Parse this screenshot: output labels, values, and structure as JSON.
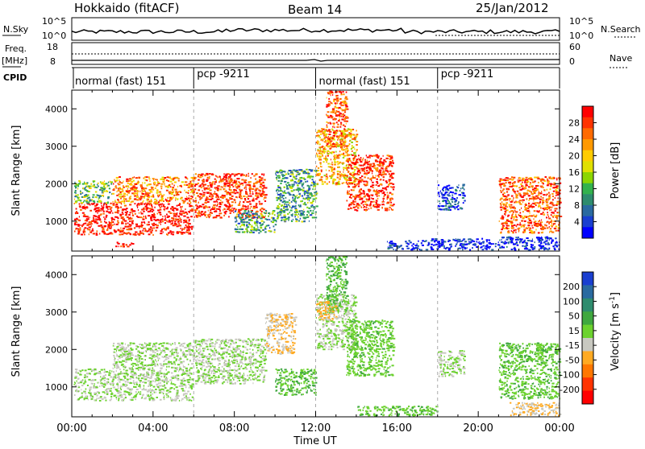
{
  "header": {
    "title": "Hokkaido (fitACF)",
    "beam": "Beam 14",
    "date": "25/Jan/2012"
  },
  "top_panels": {
    "nsky_label": "N.Sky",
    "nsky_ticks": [
      "10^5",
      "10^0"
    ],
    "nsky_right_ticks": [
      "10^5",
      "10^0"
    ],
    "nsearch_label": "N.Search",
    "freq_label": "Freq.",
    "freq_unit": "[MHz]",
    "freq_ticks": [
      "18",
      "8"
    ],
    "nave_ticks": [
      "60",
      "0"
    ],
    "nave_label": "Nave",
    "cpid_label": "CPID",
    "cpid_segments": [
      {
        "label": "normal (fast) 151",
        "start": 0,
        "end": 6
      },
      {
        "label": "pcp -9211",
        "start": 6,
        "end": 12
      },
      {
        "label": "normal (fast) 151",
        "start": 12,
        "end": 18
      },
      {
        "label": "pcp -9211",
        "start": 18,
        "end": 24
      }
    ]
  },
  "chart_data": [
    {
      "type": "heatmap",
      "name": "power-panel",
      "xlabel": "",
      "ylabel": "Slant Range [km]",
      "xlim": [
        0,
        24
      ],
      "ylim": [
        200,
        4500
      ],
      "yticks": [
        "1000",
        "2000",
        "3000",
        "4000"
      ],
      "colorbar": {
        "label": "Power [dB]",
        "ticks": [
          "28",
          "24",
          "20",
          "16",
          "12",
          "8",
          "4"
        ],
        "colors": [
          "#ff0000",
          "#ff3300",
          "#ff6a00",
          "#ff9900",
          "#ffcc00",
          "#e0e000",
          "#8cd600",
          "#33b24d",
          "#2e8c6e",
          "#2a6aa0",
          "#1a3fd0",
          "#0000ff"
        ]
      },
      "regions": [
        {
          "t0": 0.1,
          "t1": 5.9,
          "r0": 650,
          "r1": 1500,
          "value": 27
        },
        {
          "t0": 2.0,
          "t1": 6.0,
          "r0": 1500,
          "r1": 2200,
          "value": 22
        },
        {
          "t0": 0.1,
          "t1": 2.0,
          "r0": 1500,
          "r1": 2100,
          "value": 14
        },
        {
          "t0": 6.0,
          "t1": 9.5,
          "r0": 1100,
          "r1": 2300,
          "value": 25
        },
        {
          "t0": 8.0,
          "t1": 10.0,
          "r0": 700,
          "r1": 1300,
          "value": 12
        },
        {
          "t0": 2.0,
          "t1": 3.0,
          "r0": 330,
          "r1": 450,
          "value": 28
        },
        {
          "t0": 10.0,
          "t1": 12.0,
          "r0": 1000,
          "r1": 2400,
          "value": 12
        },
        {
          "t0": 12.0,
          "t1": 14.0,
          "r0": 2000,
          "r1": 3500,
          "value": 20
        },
        {
          "t0": 13.5,
          "t1": 15.8,
          "r0": 1300,
          "r1": 2800,
          "value": 26
        },
        {
          "t0": 12.5,
          "t1": 13.5,
          "r0": 3000,
          "r1": 4500,
          "value": 24
        },
        {
          "t0": 15.5,
          "t1": 17.5,
          "r0": 250,
          "r1": 500,
          "value": 6
        },
        {
          "t0": 17.5,
          "t1": 21.0,
          "r0": 250,
          "r1": 550,
          "value": 5
        },
        {
          "t0": 18.0,
          "t1": 19.3,
          "r0": 1300,
          "r1": 2000,
          "value": 7
        },
        {
          "t0": 21.0,
          "t1": 24.0,
          "r0": 700,
          "r1": 2200,
          "value": 24
        },
        {
          "t0": 21.0,
          "t1": 24.0,
          "r0": 250,
          "r1": 600,
          "value": 6
        }
      ]
    },
    {
      "type": "heatmap",
      "name": "velocity-panel",
      "xlabel": "Time UT",
      "ylabel": "Slant Range [km]",
      "xlim": [
        0,
        24
      ],
      "ylim": [
        200,
        4500
      ],
      "xticks": [
        "00:00",
        "04:00",
        "08:00",
        "12:00",
        "16:00",
        "20:00",
        "00:00"
      ],
      "yticks": [
        "1000",
        "2000",
        "3000",
        "4000"
      ],
      "colorbar": {
        "label": "Velocity [m s^-1]",
        "ticks": [
          "200",
          "100",
          "50",
          "15",
          "-15",
          "-50",
          "-100",
          "-200"
        ],
        "colors": [
          "#1a3fd0",
          "#2a6aa0",
          "#2e8c6e",
          "#3fa83f",
          "#6cd22e",
          "#c8c8c0",
          "#ffaa22",
          "#ff7700",
          "#ff3300",
          "#ff0000"
        ]
      },
      "regions": [
        {
          "t0": 0.1,
          "t1": 5.9,
          "r0": 650,
          "r1": 1500,
          "value": 0
        },
        {
          "t0": 2.0,
          "t1": 6.0,
          "r0": 1500,
          "r1": 2200,
          "value": 0
        },
        {
          "t0": 6.0,
          "t1": 9.5,
          "r0": 1100,
          "r1": 2300,
          "value": 0
        },
        {
          "t0": 9.5,
          "t1": 11.0,
          "r0": 1900,
          "r1": 3000,
          "value": -40
        },
        {
          "t0": 10.0,
          "t1": 12.0,
          "r0": 800,
          "r1": 1500,
          "value": 40
        },
        {
          "t0": 12.0,
          "t1": 14.0,
          "r0": 2000,
          "r1": 3500,
          "value": 0
        },
        {
          "t0": 13.5,
          "t1": 15.8,
          "r0": 1300,
          "r1": 2800,
          "value": 30
        },
        {
          "t0": 12.5,
          "t1": 13.5,
          "r0": 3000,
          "r1": 4500,
          "value": 40
        },
        {
          "t0": 12.0,
          "t1": 13.0,
          "r0": 2800,
          "r1": 3300,
          "value": -45
        },
        {
          "t0": 14.0,
          "t1": 18.0,
          "r0": 250,
          "r1": 500,
          "value": 35
        },
        {
          "t0": 18.0,
          "t1": 19.3,
          "r0": 1300,
          "r1": 2000,
          "value": 0
        },
        {
          "t0": 21.0,
          "t1": 24.0,
          "r0": 700,
          "r1": 2200,
          "value": 35
        },
        {
          "t0": 21.5,
          "t1": 24.0,
          "r0": 250,
          "r1": 600,
          "value": -40
        }
      ]
    }
  ]
}
